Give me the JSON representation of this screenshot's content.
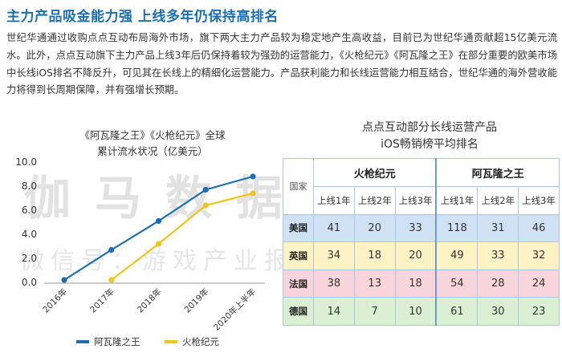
{
  "heading": "主力产品吸金能力强 上线多年仍保持高排名",
  "paragraph": "世纪华通通过收购点点互动布局海外市场，旗下两大主力产品较为稳定地产生高收益，目前已为世纪华通贡献超15亿美元流水。此外，点点互动旗下主力产品上线3年后仍保持着较为强劲的运营能力，《火枪纪元》《阿瓦隆之王》在部分重要的欧美市场中长线iOS排名不降反升，可见其在长线上的精细化运营能力。产品获利能力和长线运营能力相互结合，世纪华通的海外营收能力将得到长周期保障，并有强增长预期。",
  "watermark": {
    "main": "伽马数据",
    "sub": "微信号：游戏产业报告"
  },
  "chart_data": {
    "type": "line",
    "title": "《阿瓦隆之王》《火枪纪元》全球累计流水状况（亿美元）",
    "title_line1": "《阿瓦隆之王》《火枪纪元》全球",
    "title_line2": "累计流水状况（亿美元）",
    "categories": [
      "2016年",
      "2017年",
      "2018年",
      "2019年",
      "2020年上半年"
    ],
    "yticks": [
      "10.0",
      "8.0",
      "6.0",
      "4.0",
      "2.0",
      "0.0"
    ],
    "ylim": [
      0,
      10
    ],
    "series": [
      {
        "name": "阿瓦隆之王",
        "color": "#1a6fb5",
        "values": [
          0.2,
          2.7,
          5.1,
          7.7,
          8.8
        ]
      },
      {
        "name": "火枪纪元",
        "color": "#f0c419",
        "values": [
          null,
          0.2,
          3.2,
          6.4,
          7.4
        ]
      }
    ],
    "legend": "bottom"
  },
  "table": {
    "title_line1": "点点互动部分长线运营产品",
    "title_line2": "iOS畅销榜平均排名",
    "corner": "国家",
    "games": [
      "火枪纪元",
      "阿瓦隆之王"
    ],
    "years": [
      "上线1年",
      "上线2年",
      "上线3年",
      "上线1年",
      "上线2年",
      "上线3年"
    ],
    "rows": [
      {
        "country": "美国",
        "values": [
          "41",
          "20",
          "33",
          "118",
          "31",
          "46"
        ]
      },
      {
        "country": "英国",
        "values": [
          "34",
          "18",
          "20",
          "49",
          "33",
          "32"
        ]
      },
      {
        "country": "法国",
        "values": [
          "38",
          "13",
          "18",
          "54",
          "28",
          "24"
        ]
      },
      {
        "country": "德国",
        "values": [
          "14",
          "7",
          "10",
          "61",
          "30",
          "23"
        ]
      }
    ]
  }
}
